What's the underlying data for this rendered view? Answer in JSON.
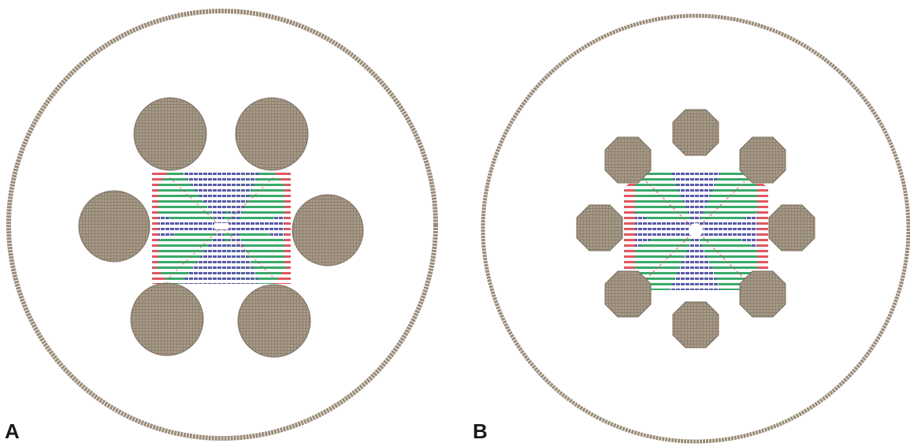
{
  "panels": [
    {
      "label": "A",
      "rod_count": 6
    },
    {
      "label": "B",
      "rod_count": 8
    }
  ],
  "colors": {
    "boundary": "#9a8b78",
    "rod": "#a89a88",
    "rod_edge": "#7d7060",
    "green": "#3aaa6a",
    "blue": "#5a5aa8",
    "red": "#e05860",
    "background": "#ffffff"
  }
}
